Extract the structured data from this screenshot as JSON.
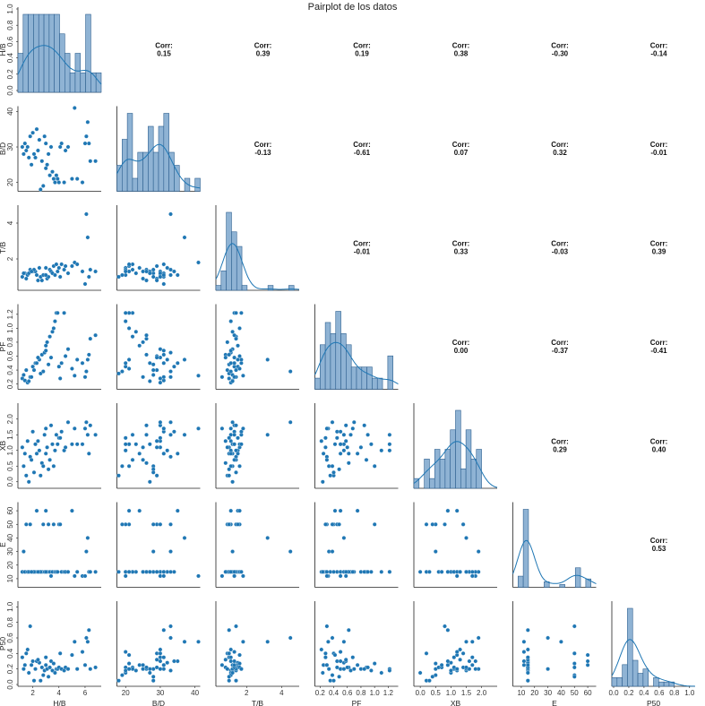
{
  "title": "Pairplot de los datos",
  "corr_prefix": "Corr:",
  "colors": {
    "point": "#1f77b4",
    "hist_fill": "#8fb3d4",
    "hist_edge": "#2d5f8f",
    "kde": "#1f77b4"
  },
  "chart_data": {
    "type": "scatter",
    "title": "Pairplot de los datos",
    "variables": [
      "H/B",
      "B/D",
      "T/B",
      "PF",
      "XB",
      "E",
      "P50"
    ],
    "grid": false,
    "layout": "lower-triangle scatter matrix, diagonal histograms with KDE, upper triangle correlation labels",
    "correlations": [
      {
        "row": "H/B",
        "col": "B/D",
        "value": "0.15"
      },
      {
        "row": "H/B",
        "col": "T/B",
        "value": "0.39"
      },
      {
        "row": "H/B",
        "col": "PF",
        "value": "0.19"
      },
      {
        "row": "H/B",
        "col": "XB",
        "value": "0.38"
      },
      {
        "row": "H/B",
        "col": "E",
        "value": "-0.30"
      },
      {
        "row": "H/B",
        "col": "P50",
        "value": "-0.14"
      },
      {
        "row": "B/D",
        "col": "T/B",
        "value": "-0.13"
      },
      {
        "row": "B/D",
        "col": "PF",
        "value": "-0.61"
      },
      {
        "row": "B/D",
        "col": "XB",
        "value": "0.07"
      },
      {
        "row": "B/D",
        "col": "E",
        "value": "0.32"
      },
      {
        "row": "B/D",
        "col": "P50",
        "value": "-0.01"
      },
      {
        "row": "T/B",
        "col": "PF",
        "value": "-0.01"
      },
      {
        "row": "T/B",
        "col": "XB",
        "value": "0.33"
      },
      {
        "row": "T/B",
        "col": "E",
        "value": "-0.03"
      },
      {
        "row": "T/B",
        "col": "P50",
        "value": "0.39"
      },
      {
        "row": "PF",
        "col": "XB",
        "value": "0.00"
      },
      {
        "row": "PF",
        "col": "E",
        "value": "-0.37"
      },
      {
        "row": "PF",
        "col": "P50",
        "value": "-0.41"
      },
      {
        "row": "XB",
        "col": "E",
        "value": "0.29"
      },
      {
        "row": "XB",
        "col": "P50",
        "value": "0.40"
      },
      {
        "row": "E",
        "col": "P50",
        "value": "0.53"
      }
    ],
    "axes": {
      "H/B": {
        "range": [
          1,
          7.1
        ],
        "ticks": [
          "2",
          "4",
          "6"
        ]
      },
      "B/D": {
        "range": [
          18,
          41
        ],
        "ticks": [
          "20",
          "30",
          "40"
        ]
      },
      "T/B": {
        "range": [
          0.35,
          4.9
        ],
        "ticks": [
          "2",
          "4"
        ]
      },
      "PF": {
        "range": [
          0.15,
          1.32
        ],
        "ticks": [
          "0.2",
          "0.4",
          "0.6",
          "0.8",
          "1.0",
          "1.2"
        ]
      },
      "XB": {
        "range": [
          -0.15,
          2.45
        ],
        "ticks": [
          "0.0",
          "0.5",
          "1.0",
          "1.5",
          "2.0"
        ]
      },
      "E": {
        "range": [
          5,
          65
        ],
        "ticks": [
          "10",
          "20",
          "30",
          "40",
          "50",
          "60"
        ]
      },
      "P50": {
        "range": [
          0,
          1.05
        ],
        "ticks": [
          "0.0",
          "0.2",
          "0.4",
          "0.6",
          "0.8",
          "1.0"
        ]
      }
    },
    "diag_ylabel": {
      "label": "H/B",
      "ticks": [
        "0.0",
        "0.2",
        "0.4",
        "0.6",
        "0.8",
        "1.0"
      ]
    },
    "observations": [
      [
        1.2,
        30,
        1.0,
        0.28,
        1.1,
        15,
        0.35
      ],
      [
        1.4,
        31,
        1.2,
        0.25,
        0.9,
        15,
        0.25
      ],
      [
        1.6,
        30,
        1.1,
        0.22,
        1.3,
        15,
        0.45
      ],
      [
        1.8,
        33,
        1.4,
        0.3,
        0.8,
        50,
        0.75
      ],
      [
        2.0,
        34,
        1.3,
        0.45,
        1.6,
        15,
        0.3
      ],
      [
        1.3,
        28,
        1.2,
        0.33,
        0.5,
        30,
        0.2
      ],
      [
        1.5,
        29,
        0.9,
        0.4,
        0.2,
        50,
        0.4
      ],
      [
        2.2,
        27,
        1.3,
        0.5,
        1.2,
        15,
        0.2
      ],
      [
        2.5,
        32,
        1.5,
        0.55,
        1.0,
        15,
        0.28
      ],
      [
        2.7,
        26,
        0.8,
        0.62,
        0.6,
        15,
        0.22
      ],
      [
        2.9,
        33,
        1.1,
        0.65,
        1.5,
        15,
        0.18
      ],
      [
        3.0,
        24,
        1.5,
        0.75,
        0.9,
        60,
        0.25
      ],
      [
        3.1,
        25,
        0.9,
        0.8,
        1.1,
        15,
        0.2
      ],
      [
        3.3,
        22,
        1.4,
        0.88,
        0.7,
        15,
        0.22
      ],
      [
        3.4,
        30,
        1.3,
        0.58,
        1.8,
        12,
        0.3
      ],
      [
        3.5,
        23,
        1.2,
        0.95,
        1.2,
        15,
        0.18
      ],
      [
        3.6,
        21,
        1.6,
        1.0,
        0.5,
        50,
        0.27
      ],
      [
        3.7,
        20,
        1.1,
        1.1,
        1.0,
        15,
        0.15
      ],
      [
        3.8,
        22,
        1.7,
        1.22,
        1.5,
        15,
        0.2
      ],
      [
        3.9,
        21,
        1.3,
        1.22,
        1.2,
        15,
        0.2
      ],
      [
        4.0,
        20,
        1.5,
        0.45,
        1.4,
        50,
        0.22
      ],
      [
        4.2,
        31,
        1.7,
        0.5,
        1.6,
        15,
        0.2
      ],
      [
        4.4,
        20,
        1.4,
        1.22,
        1.0,
        15,
        0.18
      ],
      [
        4.5,
        29,
        1.6,
        0.6,
        1.1,
        15,
        0.22
      ],
      [
        4.7,
        30,
        1.2,
        0.7,
        1.9,
        15,
        0.2
      ],
      [
        5.0,
        21,
        1.6,
        0.42,
        1.2,
        60,
        0.38
      ],
      [
        5.2,
        41,
        1.8,
        0.32,
        1.7,
        12,
        0.55
      ],
      [
        5.4,
        21,
        1.7,
        0.55,
        1.2,
        15,
        0.2
      ],
      [
        5.8,
        20,
        1.3,
        0.5,
        1.2,
        12,
        0.42
      ],
      [
        6.1,
        33,
        4.5,
        0.38,
        1.9,
        30,
        0.6
      ],
      [
        6.2,
        37,
        3.2,
        0.55,
        1.5,
        40,
        0.55
      ],
      [
        6.3,
        31,
        1.0,
        0.62,
        0.9,
        15,
        0.7
      ],
      [
        6.0,
        31,
        0.6,
        0.3,
        1.7,
        12,
        0.25
      ],
      [
        6.4,
        26,
        1.4,
        0.85,
        1.8,
        15,
        0.2
      ],
      [
        6.8,
        26,
        1.3,
        0.9,
        1.5,
        15,
        0.22
      ],
      [
        2.6,
        18,
        1.0,
        0.35,
        0.2,
        15,
        0.05
      ],
      [
        2.8,
        19,
        1.1,
        0.38,
        0.5,
        50,
        0.12
      ],
      [
        3.2,
        28,
        1.0,
        0.48,
        0.4,
        50,
        0.1
      ],
      [
        2.1,
        28,
        1.4,
        0.4,
        0.3,
        15,
        0.05
      ],
      [
        1.7,
        27,
        1.2,
        0.24,
        0.0,
        15,
        0.15
      ],
      [
        1.9,
        25,
        1.3,
        0.3,
        0.7,
        15,
        0.25
      ],
      [
        2.3,
        35,
        1.1,
        0.5,
        0.9,
        60,
        0.3
      ],
      [
        2.4,
        29,
        0.8,
        0.58,
        1.3,
        15,
        0.32
      ],
      [
        4.1,
        30,
        1.0,
        0.28,
        1.4,
        50,
        0.4
      ],
      [
        3.0,
        31,
        1.1,
        0.68,
        1.7,
        15,
        0.35
      ]
    ]
  }
}
